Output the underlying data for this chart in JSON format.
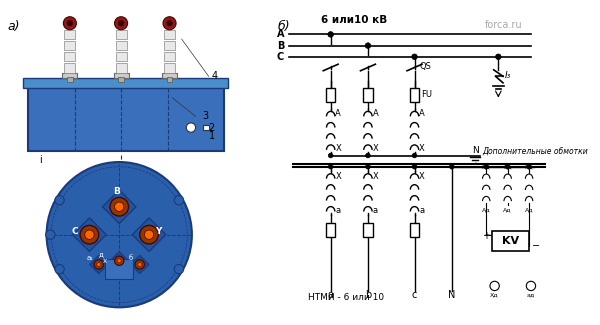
{
  "bg_color": "#ffffff",
  "label_a": "а)",
  "label_b": "б)",
  "watermark": "forca.ru",
  "title_6_10": "6 или10 кВ",
  "label_NTMI": "НТМИ - 6 или 10",
  "label_dop": "Дополнительные обмотки",
  "phases": [
    "A",
    "B",
    "C"
  ],
  "terminals_bottom": [
    "a",
    "b",
    "c",
    "N"
  ],
  "label_QS": "QS",
  "label_FU": "FU",
  "label_I3": "I₃",
  "label_N": "N",
  "label_KV": "KV",
  "label_Xd": "Хд",
  "label_Ad": "Aд",
  "label_ad": "ад",
  "transformer_body_color": "#3a6fbc",
  "transformer_dark": "#1a3a7a",
  "insulator_color": "#e8e8e8",
  "insulator_top_color": "#8b1a1a",
  "numbers": [
    "1",
    "2",
    "3",
    "4"
  ],
  "circle_bottom_color": "#2a5fac",
  "coil_brown": "#8b3a00",
  "schematic_line_color": "#000000"
}
